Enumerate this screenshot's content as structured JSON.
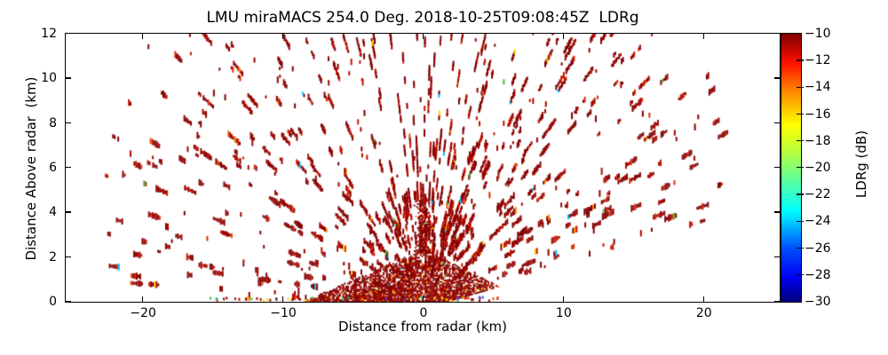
{
  "chart_data": {
    "type": "scatter",
    "subtype": "radar-rhi-speckle",
    "title": "LMU miraMACS 254.0 Deg. 2018-10-25T09:08:45Z  LDRg",
    "xlabel": "Distance from radar (km)",
    "ylabel": "Distance Above radar  (km)",
    "xlim": [
      -25.52,
      25.4
    ],
    "ylim": [
      0,
      12
    ],
    "xticks": [
      -20,
      -10,
      0,
      10,
      20
    ],
    "yticks": [
      0,
      2,
      4,
      6,
      8,
      10,
      12
    ],
    "grid": false,
    "background": "#ffffff",
    "colorbar": {
      "label": "LDRg (dB)",
      "ticks": [
        -10,
        -12,
        -14,
        -16,
        -18,
        -20,
        -22,
        -24,
        -26,
        -28,
        -30
      ],
      "vmin": -30,
      "vmax": -10,
      "colormap": "jet",
      "orientation": "vertical"
    },
    "scan": {
      "instrument": "LMU miraMACS",
      "azimuth_deg": 254.0,
      "timestamp": "2018-10-25T09:08:45Z",
      "field": "LDRg",
      "dominant_value_dB": -11,
      "description": "RHI fan of sparse dark-red speckle echoes (LDRg near -10 dB) along rays from the radar at origin; dense ground-clutter wedge within ~8 km left / ~5 km right of the radar below ~2.4 km height with orange/yellow/green sparkles; echo-free wedge below ~10 deg elevation on the right side; max range ~23 km."
    },
    "generator": {
      "seed": 20181025,
      "elevation_start_deg": 10.3,
      "elevation_end_deg": 179.3,
      "elevation_step_deg": 0.9,
      "gate_start_km": 1.25,
      "gate_step_km": 0.13,
      "gate_end_km": 23.35,
      "run_continue_prob": 0.74,
      "arc_ranges_km": [
        4.3,
        6.7,
        9.2,
        11.9,
        14.7,
        17.5,
        20.3,
        22.5
      ],
      "inner_arc_ranges_km": [
        2.9,
        3.7,
        4.5
      ],
      "dash_palette": [
        {
          "color": "#7e0000",
          "w": 0.28
        },
        {
          "color": "#8b0000",
          "w": 0.3
        },
        {
          "color": "#9a0404",
          "w": 0.16
        },
        {
          "color": "#ad0a00",
          "w": 0.1
        },
        {
          "color": "#c41400",
          "w": 0.08
        },
        {
          "color": "#dc2a00",
          "w": 0.04
        },
        {
          "color": "#ef4f00",
          "w": 0.015
        },
        {
          "color": "#ff8c00",
          "w": 0.008
        },
        {
          "color": "#ffd700",
          "w": 0.007
        },
        {
          "color": "#3dbb3d",
          "w": 0.005
        },
        {
          "color": "#00bfff",
          "w": 0.005
        }
      ],
      "clutter": {
        "x_left_km": -8.6,
        "x_right_km": 5.7,
        "apex_height_km": 2.35,
        "right_edge_height_km": 0.6,
        "right_min_slope": 0.1817,
        "palette": [
          {
            "color": "#7a0000",
            "w": 0.34
          },
          {
            "color": "#8b0000",
            "w": 0.3
          },
          {
            "color": "#960303",
            "w": 0.16
          },
          {
            "color": "#b01000",
            "w": 0.08
          },
          {
            "color": "#d42200",
            "w": 0.05
          },
          {
            "color": "#ff4500",
            "w": 0.025
          },
          {
            "color": "#ff9000",
            "w": 0.02
          },
          {
            "color": "#ffd700",
            "w": 0.015
          },
          {
            "color": "#ffff33",
            "w": 0.005
          },
          {
            "color": "#44bb44",
            "w": 0.003
          },
          {
            "color": "#00bfff",
            "w": 0.002
          }
        ]
      }
    }
  }
}
